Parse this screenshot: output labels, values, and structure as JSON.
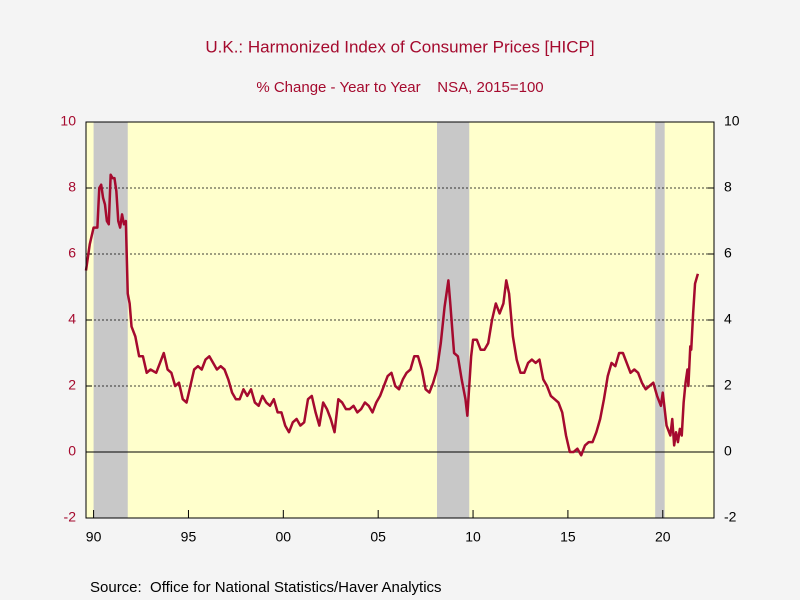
{
  "chart_data": {
    "type": "line",
    "title": "U.K.: Harmonized Index of Consumer Prices [HICP]",
    "subtitle": "% Change - Year to Year    NSA, 2015=100",
    "source": "Source:  Office for National Statistics/Haver Analytics",
    "xlim": [
      1989.6,
      2022.7
    ],
    "xticks": [
      {
        "value": 1990,
        "label": "90"
      },
      {
        "value": 1995,
        "label": "95"
      },
      {
        "value": 2000,
        "label": "00"
      },
      {
        "value": 2005,
        "label": "05"
      },
      {
        "value": 2010,
        "label": "10"
      },
      {
        "value": 2015,
        "label": "15"
      },
      {
        "value": 2020,
        "label": "20"
      }
    ],
    "ylim": [
      -2,
      10
    ],
    "yticks": [
      -2,
      0,
      2,
      4,
      6,
      8,
      10
    ],
    "y2lim": [
      -2,
      10
    ],
    "y2ticks": [
      -2,
      0,
      2,
      4,
      6,
      8,
      10
    ],
    "grid": true,
    "plot_color": "#ffffcc",
    "shade_color": "#c8c8c8",
    "shaded_periods": [
      [
        1990.0,
        1991.8
      ],
      [
        2008.1,
        2009.8
      ],
      [
        2019.6,
        2020.1
      ]
    ],
    "series": [
      {
        "name": "HICP",
        "color": "#a50a2e",
        "x": [
          1989.6,
          1989.8,
          1990.0,
          1990.2,
          1990.3,
          1990.4,
          1990.5,
          1990.6,
          1990.7,
          1990.8,
          1990.9,
          1991.0,
          1991.1,
          1991.2,
          1991.3,
          1991.4,
          1991.5,
          1991.6,
          1991.7,
          1991.8,
          1991.9,
          1992.0,
          1992.2,
          1992.4,
          1992.6,
          1992.8,
          1993.0,
          1993.3,
          1993.5,
          1993.7,
          1993.9,
          1994.1,
          1994.3,
          1994.5,
          1994.7,
          1994.9,
          1995.1,
          1995.3,
          1995.5,
          1995.7,
          1995.9,
          1996.1,
          1996.3,
          1996.5,
          1996.7,
          1996.9,
          1997.1,
          1997.3,
          1997.5,
          1997.7,
          1997.9,
          1998.1,
          1998.3,
          1998.5,
          1998.7,
          1998.9,
          1999.1,
          1999.3,
          1999.5,
          1999.7,
          1999.9,
          2000.1,
          2000.3,
          2000.5,
          2000.7,
          2000.9,
          2001.1,
          2001.3,
          2001.5,
          2001.7,
          2001.9,
          2002.1,
          2002.3,
          2002.5,
          2002.7,
          2002.9,
          2003.1,
          2003.3,
          2003.5,
          2003.7,
          2003.9,
          2004.1,
          2004.3,
          2004.5,
          2004.7,
          2004.9,
          2005.1,
          2005.3,
          2005.5,
          2005.7,
          2005.9,
          2006.1,
          2006.3,
          2006.5,
          2006.7,
          2006.9,
          2007.1,
          2007.3,
          2007.5,
          2007.7,
          2007.9,
          2008.1,
          2008.3,
          2008.5,
          2008.7,
          2008.8,
          2009.0,
          2009.2,
          2009.4,
          2009.6,
          2009.7,
          2009.9,
          2010.0,
          2010.2,
          2010.4,
          2010.6,
          2010.8,
          2011.0,
          2011.2,
          2011.4,
          2011.6,
          2011.75,
          2011.9,
          2012.1,
          2012.3,
          2012.5,
          2012.7,
          2012.9,
          2013.1,
          2013.3,
          2013.5,
          2013.7,
          2013.9,
          2014.1,
          2014.3,
          2014.5,
          2014.7,
          2014.9,
          2015.1,
          2015.3,
          2015.5,
          2015.7,
          2015.9,
          2016.1,
          2016.3,
          2016.5,
          2016.7,
          2016.9,
          2017.1,
          2017.3,
          2017.5,
          2017.7,
          2017.9,
          2018.1,
          2018.3,
          2018.5,
          2018.7,
          2018.9,
          2019.1,
          2019.3,
          2019.5,
          2019.7,
          2019.9,
          2020.0,
          2020.2,
          2020.4,
          2020.5,
          2020.6,
          2020.7,
          2020.8,
          2020.9,
          2021.0,
          2021.1,
          2021.2,
          2021.3,
          2021.35,
          2021.45,
          2021.5,
          2021.6,
          2021.7,
          2021.85
        ],
        "values": [
          5.5,
          6.3,
          6.8,
          6.8,
          8.0,
          8.1,
          7.7,
          7.5,
          7.0,
          6.9,
          8.4,
          8.3,
          8.3,
          7.9,
          7.0,
          6.8,
          7.2,
          6.9,
          7.0,
          4.8,
          4.5,
          3.8,
          3.5,
          2.9,
          2.9,
          2.4,
          2.5,
          2.4,
          2.7,
          3.0,
          2.5,
          2.4,
          2.0,
          2.1,
          1.6,
          1.5,
          2.0,
          2.5,
          2.6,
          2.5,
          2.8,
          2.9,
          2.7,
          2.5,
          2.6,
          2.5,
          2.2,
          1.8,
          1.6,
          1.6,
          1.9,
          1.7,
          1.9,
          1.5,
          1.4,
          1.7,
          1.5,
          1.4,
          1.6,
          1.2,
          1.2,
          0.8,
          0.6,
          0.9,
          1.0,
          0.8,
          0.9,
          1.6,
          1.7,
          1.2,
          0.8,
          1.5,
          1.3,
          1.0,
          0.6,
          1.6,
          1.5,
          1.3,
          1.3,
          1.4,
          1.2,
          1.3,
          1.5,
          1.4,
          1.2,
          1.5,
          1.7,
          2.0,
          2.3,
          2.4,
          2.0,
          1.9,
          2.2,
          2.4,
          2.5,
          2.9,
          2.9,
          2.5,
          1.9,
          1.8,
          2.1,
          2.5,
          3.3,
          4.4,
          5.2,
          4.5,
          3.0,
          2.9,
          2.2,
          1.6,
          1.1,
          2.9,
          3.4,
          3.4,
          3.1,
          3.1,
          3.3,
          4.0,
          4.5,
          4.2,
          4.5,
          5.2,
          4.8,
          3.5,
          2.8,
          2.4,
          2.4,
          2.7,
          2.8,
          2.7,
          2.8,
          2.2,
          2.0,
          1.7,
          1.6,
          1.5,
          1.2,
          0.5,
          0.0,
          0.0,
          0.1,
          -0.1,
          0.2,
          0.3,
          0.3,
          0.6,
          1.0,
          1.6,
          2.3,
          2.7,
          2.6,
          3.0,
          3.0,
          2.7,
          2.4,
          2.5,
          2.4,
          2.1,
          1.9,
          2.0,
          2.1,
          1.7,
          1.4,
          1.8,
          0.8,
          0.5,
          1.0,
          0.2,
          0.6,
          0.3,
          0.7,
          0.5,
          1.5,
          2.1,
          2.5,
          2.0,
          3.2,
          3.1,
          4.2,
          5.1,
          5.4
        ]
      }
    ]
  }
}
